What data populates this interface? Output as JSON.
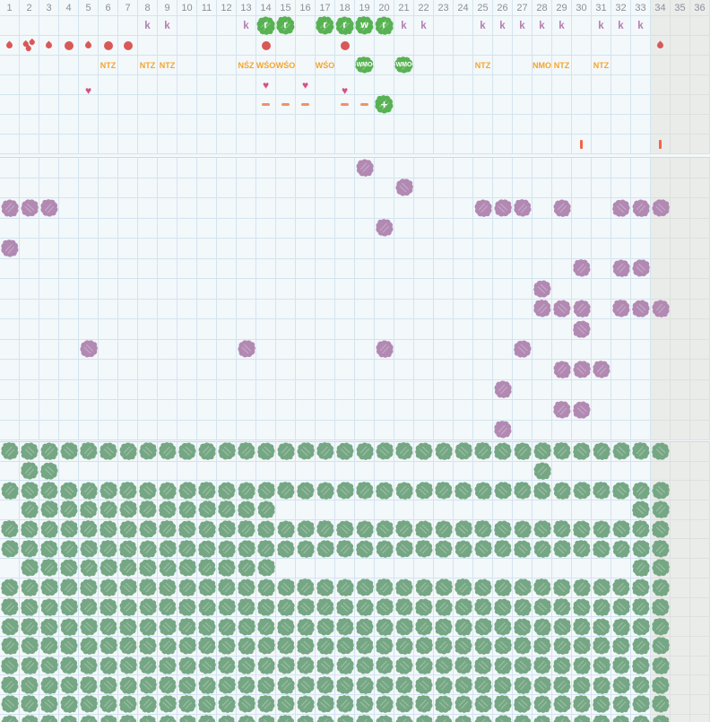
{
  "grid": {
    "columns": 36,
    "greyed_from_column": 34,
    "day_numbers": [
      1,
      2,
      3,
      4,
      5,
      6,
      7,
      8,
      9,
      10,
      11,
      12,
      13,
      14,
      15,
      16,
      17,
      18,
      19,
      20,
      21,
      22,
      23,
      24,
      25,
      26,
      27,
      28,
      29,
      30,
      31,
      32,
      33,
      34,
      35,
      36
    ],
    "colors": {
      "background": "#f3f8fa",
      "grid_line": "#d3e4ef",
      "greyed_background": "#eaecea",
      "greyed_grid_line": "#dee0dd",
      "header_text": "#899199",
      "k_mark": "#b27fb2",
      "bright_green": "#58b253",
      "sage_green": "#76a784",
      "purple": "#b289b2",
      "red": "#d95858",
      "orange_text": "#f5a42c",
      "dash": "#f0916b",
      "bar": "#f2654a",
      "heart": "#d65181"
    }
  },
  "top_section": {
    "rows": [
      {
        "name": "intercourse-row",
        "items": [
          {
            "col": 8,
            "kind": "k",
            "text": "k"
          },
          {
            "col": 9,
            "kind": "k",
            "text": "k"
          },
          {
            "col": 13,
            "kind": "k",
            "text": "k"
          },
          {
            "col": 14,
            "kind": "letter-blob",
            "text": "r"
          },
          {
            "col": 15,
            "kind": "letter-blob",
            "text": "r"
          },
          {
            "col": 17,
            "kind": "letter-blob",
            "text": "r"
          },
          {
            "col": 18,
            "kind": "letter-blob",
            "text": "r"
          },
          {
            "col": 19,
            "kind": "letter-blob",
            "text": "w"
          },
          {
            "col": 20,
            "kind": "letter-blob",
            "text": "r"
          },
          {
            "col": 21,
            "kind": "k",
            "text": "k"
          },
          {
            "col": 22,
            "kind": "k",
            "text": "k"
          },
          {
            "col": 25,
            "kind": "k",
            "text": "k"
          },
          {
            "col": 26,
            "kind": "k",
            "text": "k"
          },
          {
            "col": 27,
            "kind": "k",
            "text": "k"
          },
          {
            "col": 28,
            "kind": "k",
            "text": "k"
          },
          {
            "col": 29,
            "kind": "k",
            "text": "k"
          },
          {
            "col": 31,
            "kind": "k",
            "text": "k"
          },
          {
            "col": 32,
            "kind": "k",
            "text": "k"
          },
          {
            "col": 33,
            "kind": "k",
            "text": "k"
          }
        ]
      },
      {
        "name": "bleeding-row",
        "items": [
          {
            "col": 1,
            "kind": "drop"
          },
          {
            "col": 2,
            "kind": "drop-cluster"
          },
          {
            "col": 3,
            "kind": "drop"
          },
          {
            "col": 4,
            "kind": "dot"
          },
          {
            "col": 5,
            "kind": "drop"
          },
          {
            "col": 6,
            "kind": "dot"
          },
          {
            "col": 7,
            "kind": "dot"
          },
          {
            "col": 14,
            "kind": "dot"
          },
          {
            "col": 18,
            "kind": "dot"
          },
          {
            "col": 34,
            "kind": "drop"
          }
        ]
      },
      {
        "name": "observation-row",
        "items": [
          {
            "col": 6,
            "kind": "med-text",
            "text": "NTZ"
          },
          {
            "col": 8,
            "kind": "med-text",
            "text": "NTZ"
          },
          {
            "col": 9,
            "kind": "med-text",
            "text": "NTZ"
          },
          {
            "col": 13,
            "kind": "med-text",
            "text": "NŚZ"
          },
          {
            "col": 14,
            "kind": "med-text",
            "text": "WŚO"
          },
          {
            "col": 15,
            "kind": "med-text",
            "text": "WŚO"
          },
          {
            "col": 17,
            "kind": "med-text",
            "text": "WŚO"
          },
          {
            "col": 19,
            "kind": "med-blob",
            "text": "WMO"
          },
          {
            "col": 21,
            "kind": "med-blob",
            "text": "WMO"
          },
          {
            "col": 25,
            "kind": "med-text",
            "text": "NTZ"
          },
          {
            "col": 28,
            "kind": "med-text",
            "text": "NMO"
          },
          {
            "col": 29,
            "kind": "med-text",
            "text": "NTZ"
          },
          {
            "col": 31,
            "kind": "med-text",
            "text": "NTZ"
          }
        ]
      },
      {
        "name": "mood-row",
        "items": [
          {
            "col": 5,
            "kind": "heart",
            "low": true
          },
          {
            "col": 14,
            "kind": "heart"
          },
          {
            "col": 16,
            "kind": "heart"
          },
          {
            "col": 18,
            "kind": "heart",
            "low": true
          }
        ]
      },
      {
        "name": "test-row",
        "items": [
          {
            "col": 14,
            "kind": "dash"
          },
          {
            "col": 15,
            "kind": "dash"
          },
          {
            "col": 16,
            "kind": "dash"
          },
          {
            "col": 18,
            "kind": "dash"
          },
          {
            "col": 19,
            "kind": "dash"
          },
          {
            "col": 20,
            "kind": "plus-blob",
            "text": "+"
          }
        ]
      },
      {
        "name": "empty-row",
        "items": []
      },
      {
        "name": "note-row",
        "items": [
          {
            "col": 30,
            "kind": "bar"
          },
          {
            "col": 34,
            "kind": "bar"
          }
        ]
      }
    ]
  },
  "middle_section": {
    "row_count": 14,
    "symbol": "purple-scribble",
    "rows": [
      {
        "row": 1,
        "cols": "19"
      },
      {
        "row": 2,
        "cols": "21"
      },
      {
        "row": 3,
        "cols": "1-3,25-27,29,32-34"
      },
      {
        "row": 4,
        "cols": "20"
      },
      {
        "row": 5,
        "cols": "1"
      },
      {
        "row": 6,
        "cols": "30,32,33"
      },
      {
        "row": 7,
        "cols": "28"
      },
      {
        "row": 8,
        "cols": "28-30,32-34"
      },
      {
        "row": 9,
        "cols": "30"
      },
      {
        "row": 10,
        "cols": "5,13,20,27"
      },
      {
        "row": 11,
        "cols": "29-31"
      },
      {
        "row": 12,
        "cols": "26"
      },
      {
        "row": 13,
        "cols": "29,30"
      },
      {
        "row": 14,
        "cols": "26"
      }
    ]
  },
  "bottom_section": {
    "row_count": 15,
    "symbol": "green-scribble",
    "rows": [
      {
        "row": 1,
        "cols": "1-34"
      },
      {
        "row": 2,
        "cols": "2,3,28"
      },
      {
        "row": 3,
        "cols": "1-34"
      },
      {
        "row": 4,
        "cols": "2-14,33,34"
      },
      {
        "row": 5,
        "cols": "1-34"
      },
      {
        "row": 6,
        "cols": "1-34"
      },
      {
        "row": 7,
        "cols": "2-14,33,34"
      },
      {
        "row": 8,
        "cols": "1-34"
      },
      {
        "row": 9,
        "cols": "1-34"
      },
      {
        "row": 10,
        "cols": "1-34"
      },
      {
        "row": 11,
        "cols": "1-34"
      },
      {
        "row": 12,
        "cols": "1-34"
      },
      {
        "row": 13,
        "cols": "1-34"
      },
      {
        "row": 14,
        "cols": "1-34"
      },
      {
        "row": 15,
        "cols": "1-34"
      }
    ]
  }
}
